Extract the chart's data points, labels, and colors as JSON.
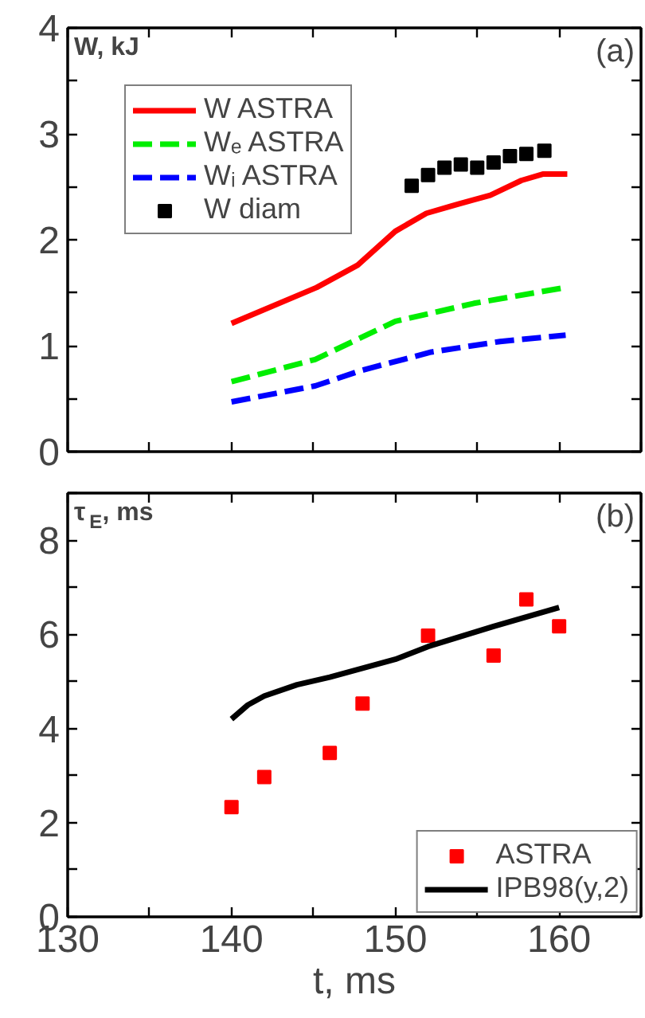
{
  "chart_data": [
    {
      "type": "line",
      "ylabel": "W, kJ",
      "annotations": [
        "(a)"
      ],
      "xlim": [
        130,
        165
      ],
      "ylim": [
        0,
        4
      ],
      "tick_labels": "y",
      "legend": "top left",
      "xticks": [
        {
          "value": 130,
          "label": null
        },
        {
          "value": 135,
          "label": null
        },
        {
          "value": 140,
          "label": null
        },
        {
          "value": 145,
          "label": null
        },
        {
          "value": 150,
          "label": null
        },
        {
          "value": 155,
          "label": null
        },
        {
          "value": 160,
          "label": null
        },
        {
          "value": 165,
          "label": null
        }
      ],
      "yticks": [
        0,
        {
          "value": 0.5,
          "label": null
        },
        1,
        {
          "value": 1.5,
          "label": null
        },
        2,
        {
          "value": 2.5,
          "label": null
        },
        3,
        {
          "value": 3.5,
          "label": null
        },
        4
      ],
      "series": [
        {
          "name": "W ASTRA",
          "color": "#ff0000",
          "line_style": "solid",
          "x": [
            140,
            145.2,
            147.7,
            150,
            151.9,
            153.9,
            155.8,
            157.7,
            159,
            160.5
          ],
          "values": [
            1.21,
            1.55,
            1.76,
            2.08,
            2.25,
            2.34,
            2.42,
            2.56,
            2.62,
            2.62
          ]
        },
        {
          "name": "Wₑ ASTRA",
          "color": "#00ee00",
          "line_style": "dashed",
          "x": [
            140,
            145.1,
            150,
            154.8,
            160.4
          ],
          "values": [
            0.66,
            0.87,
            1.23,
            1.4,
            1.55
          ]
        },
        {
          "name": "Wᵢ ASTRA",
          "color": "#0000ff",
          "line_style": "dashed",
          "x": [
            140,
            145.1,
            148,
            152.2,
            156.4,
            160.4
          ],
          "values": [
            0.47,
            0.62,
            0.77,
            0.94,
            1.04,
            1.1
          ]
        },
        {
          "name": "W diam",
          "type": "scatter",
          "marker": "square",
          "color": "#000000",
          "x": [
            151,
            152,
            153,
            154,
            155,
            156,
            157,
            158,
            159.1
          ],
          "values": [
            2.51,
            2.61,
            2.68,
            2.71,
            2.68,
            2.73,
            2.79,
            2.81,
            2.84
          ]
        }
      ]
    },
    {
      "type": "scatter",
      "ylabel": "τ$_{E}$, ms",
      "xlabel": "t, ms",
      "annotations": [
        "(b)"
      ],
      "xlim": [
        130,
        165
      ],
      "ylim": [
        0,
        9
      ],
      "legend": "bottom right",
      "xticks": [
        130,
        {
          "value": 135,
          "label": null
        },
        140,
        {
          "value": 145,
          "label": null
        },
        150,
        {
          "value": 155,
          "label": null
        },
        160,
        {
          "value": 165,
          "label": null
        }
      ],
      "yticks": [
        0,
        {
          "value": 1,
          "label": null
        },
        2,
        {
          "value": 3,
          "label": null
        },
        4,
        {
          "value": 5,
          "label": null
        },
        6,
        {
          "value": 7,
          "label": null
        },
        8,
        {
          "value": 9,
          "label": null
        }
      ],
      "series": [
        {
          "name": "ASTRA",
          "marker": "square",
          "color": "#ff0000",
          "x": [
            140,
            142,
            146,
            148,
            152,
            156,
            158,
            160
          ],
          "values": [
            2.33,
            2.97,
            3.48,
            4.53,
            5.97,
            5.55,
            6.74,
            6.17
          ]
        },
        {
          "name": "IPB98(y,2)",
          "type": "line",
          "line_style": "solid",
          "color": "#000000",
          "x": [
            140,
            141,
            142,
            144,
            146,
            150,
            152,
            156,
            160
          ],
          "values": [
            4.2,
            4.5,
            4.69,
            4.93,
            5.09,
            5.47,
            5.74,
            6.17,
            6.57
          ]
        }
      ]
    }
  ]
}
